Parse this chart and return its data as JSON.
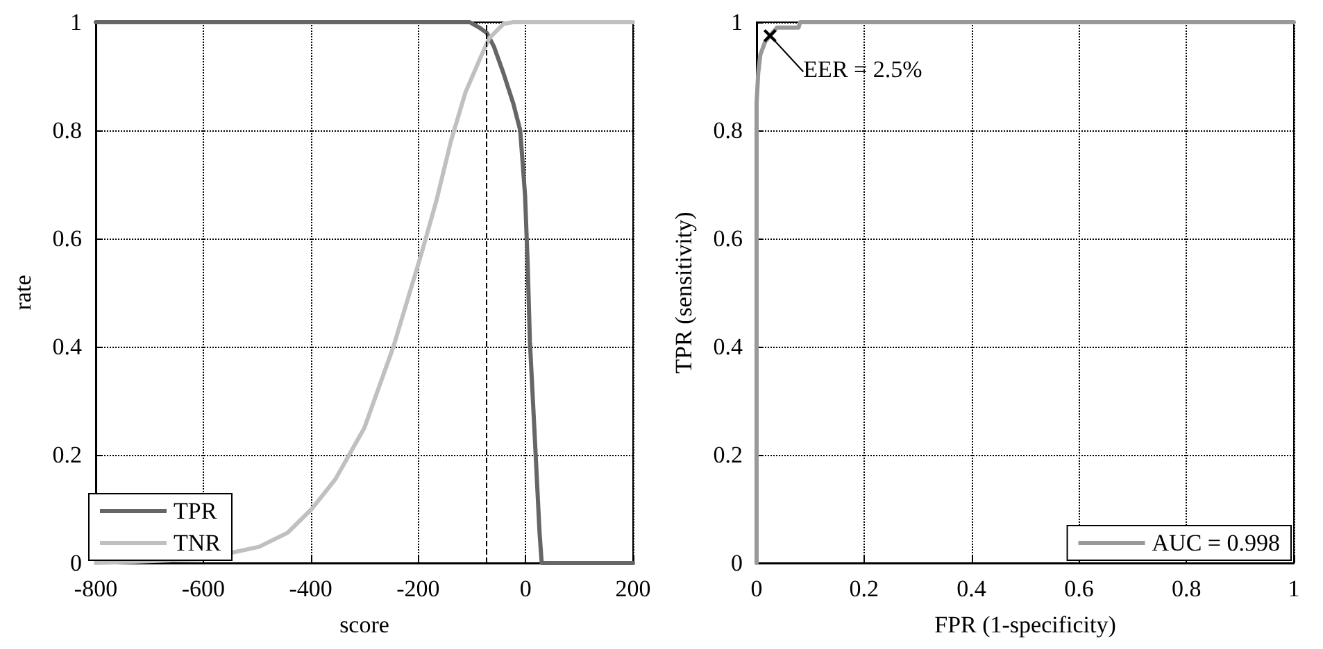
{
  "chart_data": [
    {
      "type": "line",
      "xlabel": "score",
      "ylabel": "rate",
      "xlim": [
        -800,
        200
      ],
      "xticks": [
        -800,
        -600,
        -400,
        -200,
        0,
        200
      ],
      "ylim": [
        0,
        1
      ],
      "yticks": [
        0,
        0.2,
        0.4,
        0.6,
        0.8,
        1
      ],
      "grid": true,
      "legend": "bottom left",
      "marker": "none",
      "line_style": "solid",
      "ref_lines": [
        {
          "axis": "x",
          "value": -72,
          "line_style": "dashed",
          "color": "#000000"
        }
      ],
      "series": [
        {
          "name": "TPR",
          "color": "#666666",
          "x": [
            -800,
            -104,
            -86,
            -72,
            -59,
            -41,
            -23,
            -10,
            -1,
            4,
            8,
            17,
            26,
            30,
            200
          ],
          "values": [
            1,
            1,
            0.99,
            0.98,
            0.955,
            0.905,
            0.85,
            0.8,
            0.68,
            0.55,
            0.41,
            0.235,
            0.056,
            0,
            0
          ]
        },
        {
          "name": "TNR",
          "color": "#c0c0c0",
          "x": [
            -800,
            -604,
            -496,
            -443,
            -398,
            -354,
            -300,
            -246,
            -193,
            -166,
            -139,
            -112,
            -86,
            -68,
            -41,
            -23,
            200
          ],
          "values": [
            0,
            0.007,
            0.03,
            0.056,
            0.1,
            0.155,
            0.25,
            0.4,
            0.575,
            0.67,
            0.78,
            0.87,
            0.93,
            0.97,
            0.997,
            1,
            1
          ]
        }
      ]
    },
    {
      "type": "line",
      "xlabel": "FPR (1-specificity)",
      "ylabel": "TPR (sensitivity)",
      "xlim": [
        0,
        1
      ],
      "xticks": [
        0,
        0.2,
        0.4,
        0.6,
        0.8,
        1
      ],
      "ylim": [
        0,
        1
      ],
      "yticks": [
        0,
        0.2,
        0.4,
        0.6,
        0.8,
        1
      ],
      "grid": true,
      "legend": "bottom right",
      "marker": "none",
      "line_style": "solid",
      "annotations": [
        {
          "text": "EER = 2.5%",
          "x": 0.025,
          "y": 0.975
        }
      ],
      "series": [
        {
          "name": "AUC = 0.998",
          "color": "#999999",
          "x": [
            0,
            0,
            0.003,
            0.007,
            0.016,
            0.025,
            0.038,
            0.078,
            0.081,
            1
          ],
          "values": [
            0,
            0.85,
            0.906,
            0.94,
            0.964,
            0.975,
            0.99,
            0.99,
            1,
            1
          ]
        }
      ]
    }
  ]
}
